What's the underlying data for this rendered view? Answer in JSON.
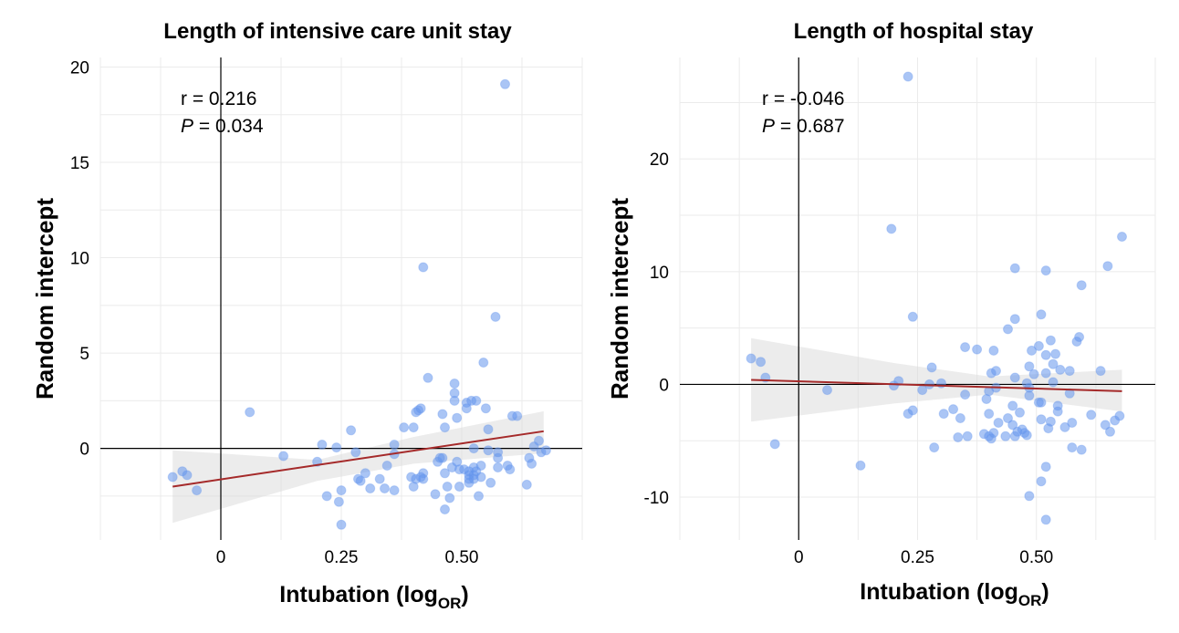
{
  "chart_data": [
    {
      "type": "scatter",
      "title": "Length of intensive care unit stay",
      "xlabel": "Intubation (log",
      "xlabel_sub": "OR",
      "xlabel_close": ")",
      "ylabel": "Random intercept",
      "xlim": [
        -0.25,
        0.75
      ],
      "ylim": [
        -4.8,
        20.5
      ],
      "x_ticks": [
        0,
        0.25,
        0.5
      ],
      "x_tick_labels": [
        "0",
        "0.25",
        "0.50"
      ],
      "y_ticks": [
        0,
        5,
        10,
        15,
        20
      ],
      "y_tick_labels": [
        "0",
        "5",
        "10",
        "15",
        "20"
      ],
      "annotation": {
        "r_text": "r = 0.216",
        "p_label": "P",
        "p_value": " = 0.034"
      },
      "fit": {
        "x": [
          -0.1,
          0.67
        ],
        "y": [
          -2.0,
          0.9
        ]
      },
      "band": {
        "x": [
          -0.1,
          0.2,
          0.4,
          0.67
        ],
        "lower": [
          -3.9,
          -1.7,
          -0.8,
          -0.25
        ],
        "upper": [
          -0.1,
          -0.6,
          0.6,
          1.95
        ]
      },
      "points": [
        [
          -0.1,
          -1.5
        ],
        [
          -0.08,
          -1.2
        ],
        [
          -0.07,
          -1.4
        ],
        [
          -0.05,
          -2.2
        ],
        [
          0.06,
          1.9
        ],
        [
          0.13,
          -0.4
        ],
        [
          0.2,
          -0.7
        ],
        [
          0.21,
          0.2
        ],
        [
          0.22,
          -2.5
        ],
        [
          0.24,
          0.05
        ],
        [
          0.245,
          -2.8
        ],
        [
          0.25,
          -2.2
        ],
        [
          0.25,
          -4.0
        ],
        [
          0.27,
          0.95
        ],
        [
          0.28,
          -0.2
        ],
        [
          0.285,
          -1.6
        ],
        [
          0.29,
          -1.7
        ],
        [
          0.3,
          -1.3
        ],
        [
          0.31,
          -2.1
        ],
        [
          0.33,
          -1.6
        ],
        [
          0.34,
          -2.1
        ],
        [
          0.345,
          -0.9
        ],
        [
          0.36,
          0.2
        ],
        [
          0.36,
          -0.3
        ],
        [
          0.36,
          -2.2
        ],
        [
          0.38,
          1.1
        ],
        [
          0.395,
          -1.5
        ],
        [
          0.4,
          1.1
        ],
        [
          0.4,
          -2.0
        ],
        [
          0.405,
          -1.6
        ],
        [
          0.405,
          1.9
        ],
        [
          0.41,
          2.0
        ],
        [
          0.415,
          -1.5
        ],
        [
          0.415,
          2.1
        ],
        [
          0.42,
          -1.6
        ],
        [
          0.42,
          -1.3
        ],
        [
          0.42,
          9.5
        ],
        [
          0.43,
          3.7
        ],
        [
          0.445,
          -2.4
        ],
        [
          0.45,
          -0.7
        ],
        [
          0.455,
          -0.5
        ],
        [
          0.46,
          1.8
        ],
        [
          0.46,
          -0.5
        ],
        [
          0.465,
          1.1
        ],
        [
          0.465,
          -1.3
        ],
        [
          0.465,
          -3.2
        ],
        [
          0.47,
          -2.0
        ],
        [
          0.475,
          -2.6
        ],
        [
          0.48,
          -1.0
        ],
        [
          0.485,
          3.4
        ],
        [
          0.485,
          2.9
        ],
        [
          0.485,
          2.5
        ],
        [
          0.49,
          1.6
        ],
        [
          0.49,
          -0.7
        ],
        [
          0.495,
          -1.1
        ],
        [
          0.495,
          -2.0
        ],
        [
          0.505,
          -1.1
        ],
        [
          0.51,
          2.4
        ],
        [
          0.51,
          2.1
        ],
        [
          0.515,
          -1.2
        ],
        [
          0.515,
          -1.4
        ],
        [
          0.515,
          -1.6
        ],
        [
          0.515,
          -1.8
        ],
        [
          0.52,
          2.5
        ],
        [
          0.525,
          0.0
        ],
        [
          0.525,
          -1.0
        ],
        [
          0.525,
          -1.4
        ],
        [
          0.525,
          -1.6
        ],
        [
          0.53,
          2.5
        ],
        [
          0.53,
          -1.2
        ],
        [
          0.535,
          -2.5
        ],
        [
          0.54,
          -1.5
        ],
        [
          0.54,
          -0.9
        ],
        [
          0.545,
          4.5
        ],
        [
          0.55,
          2.1
        ],
        [
          0.555,
          1.0
        ],
        [
          0.555,
          -0.1
        ],
        [
          0.56,
          -1.8
        ],
        [
          0.57,
          6.9
        ],
        [
          0.575,
          -0.2
        ],
        [
          0.575,
          -0.5
        ],
        [
          0.575,
          -1.0
        ],
        [
          0.59,
          19.1
        ],
        [
          0.595,
          -0.9
        ],
        [
          0.6,
          -1.1
        ],
        [
          0.605,
          1.7
        ],
        [
          0.615,
          1.7
        ],
        [
          0.635,
          -1.9
        ],
        [
          0.64,
          -0.5
        ],
        [
          0.645,
          -0.8
        ],
        [
          0.65,
          0.1
        ],
        [
          0.66,
          0.4
        ],
        [
          0.665,
          -0.2
        ],
        [
          0.675,
          -0.1
        ]
      ]
    },
    {
      "type": "scatter",
      "title": "Length of hospital stay",
      "xlabel": "Intubation (log",
      "xlabel_sub": "OR",
      "xlabel_close": ")",
      "ylabel": "Random intercept",
      "xlim": [
        -0.25,
        0.75
      ],
      "ylim": [
        -13.8,
        29.0
      ],
      "x_ticks": [
        0,
        0.25,
        0.5
      ],
      "x_tick_labels": [
        "0",
        "0.25",
        "0.50"
      ],
      "y_ticks": [
        -10,
        0,
        10,
        20
      ],
      "y_tick_labels": [
        "-10",
        "0",
        "10",
        "20"
      ],
      "annotation": {
        "r_text": "r = -0.046",
        "p_label": "P",
        "p_value": " = 0.687"
      },
      "fit": {
        "x": [
          -0.1,
          0.68
        ],
        "y": [
          0.4,
          -0.6
        ]
      },
      "band": {
        "x": [
          -0.1,
          0.2,
          0.4,
          0.68
        ],
        "lower": [
          -3.3,
          -1.7,
          -0.9,
          -2.4
        ],
        "upper": [
          4.1,
          1.9,
          0.7,
          1.3
        ]
      },
      "points": [
        [
          -0.1,
          2.3
        ],
        [
          -0.08,
          2.0
        ],
        [
          -0.07,
          0.6
        ],
        [
          -0.05,
          -5.3
        ],
        [
          0.06,
          -0.5
        ],
        [
          0.13,
          -7.2
        ],
        [
          0.195,
          13.8
        ],
        [
          0.2,
          -0.1
        ],
        [
          0.21,
          0.3
        ],
        [
          0.23,
          27.3
        ],
        [
          0.23,
          -2.6
        ],
        [
          0.24,
          6.0
        ],
        [
          0.24,
          -2.3
        ],
        [
          0.26,
          -0.5
        ],
        [
          0.275,
          0.0
        ],
        [
          0.28,
          1.5
        ],
        [
          0.285,
          -5.6
        ],
        [
          0.3,
          0.1
        ],
        [
          0.305,
          -2.6
        ],
        [
          0.325,
          -2.2
        ],
        [
          0.335,
          -4.7
        ],
        [
          0.34,
          -3.0
        ],
        [
          0.35,
          3.3
        ],
        [
          0.35,
          -0.9
        ],
        [
          0.355,
          -4.6
        ],
        [
          0.375,
          3.1
        ],
        [
          0.39,
          -4.4
        ],
        [
          0.395,
          -1.3
        ],
        [
          0.4,
          -0.6
        ],
        [
          0.4,
          -2.6
        ],
        [
          0.4,
          -4.6
        ],
        [
          0.405,
          1.0
        ],
        [
          0.405,
          -4.8
        ],
        [
          0.41,
          3.0
        ],
        [
          0.41,
          -4.3
        ],
        [
          0.415,
          1.2
        ],
        [
          0.415,
          -0.3
        ],
        [
          0.42,
          -3.4
        ],
        [
          0.435,
          -4.6
        ],
        [
          0.44,
          -3.0
        ],
        [
          0.44,
          4.9
        ],
        [
          0.45,
          -3.6
        ],
        [
          0.45,
          -1.9
        ],
        [
          0.455,
          10.3
        ],
        [
          0.455,
          5.8
        ],
        [
          0.455,
          0.6
        ],
        [
          0.455,
          -4.6
        ],
        [
          0.46,
          -4.2
        ],
        [
          0.465,
          -2.5
        ],
        [
          0.47,
          -4.0
        ],
        [
          0.475,
          -4.3
        ],
        [
          0.48,
          0.1
        ],
        [
          0.48,
          -4.5
        ],
        [
          0.485,
          1.6
        ],
        [
          0.485,
          -0.3
        ],
        [
          0.485,
          -1.0
        ],
        [
          0.485,
          -9.9
        ],
        [
          0.49,
          3.0
        ],
        [
          0.495,
          0.9
        ],
        [
          0.505,
          3.4
        ],
        [
          0.505,
          -1.6
        ],
        [
          0.51,
          6.2
        ],
        [
          0.51,
          -1.6
        ],
        [
          0.51,
          -3.1
        ],
        [
          0.51,
          -8.6
        ],
        [
          0.52,
          10.1
        ],
        [
          0.52,
          2.6
        ],
        [
          0.52,
          1.0
        ],
        [
          0.52,
          -7.3
        ],
        [
          0.52,
          -12.0
        ],
        [
          0.525,
          -3.9
        ],
        [
          0.53,
          3.9
        ],
        [
          0.53,
          -3.3
        ],
        [
          0.535,
          1.8
        ],
        [
          0.535,
          0.2
        ],
        [
          0.54,
          2.7
        ],
        [
          0.545,
          -1.9
        ],
        [
          0.545,
          -2.4
        ],
        [
          0.55,
          1.3
        ],
        [
          0.56,
          -3.8
        ],
        [
          0.57,
          1.2
        ],
        [
          0.57,
          -0.8
        ],
        [
          0.575,
          -3.4
        ],
        [
          0.575,
          -5.6
        ],
        [
          0.585,
          3.8
        ],
        [
          0.59,
          4.2
        ],
        [
          0.595,
          8.8
        ],
        [
          0.595,
          -5.8
        ],
        [
          0.615,
          -2.7
        ],
        [
          0.635,
          1.2
        ],
        [
          0.645,
          -3.6
        ],
        [
          0.65,
          10.5
        ],
        [
          0.655,
          -4.2
        ],
        [
          0.665,
          -3.2
        ],
        [
          0.675,
          -2.8
        ],
        [
          0.68,
          13.1
        ]
      ]
    }
  ]
}
